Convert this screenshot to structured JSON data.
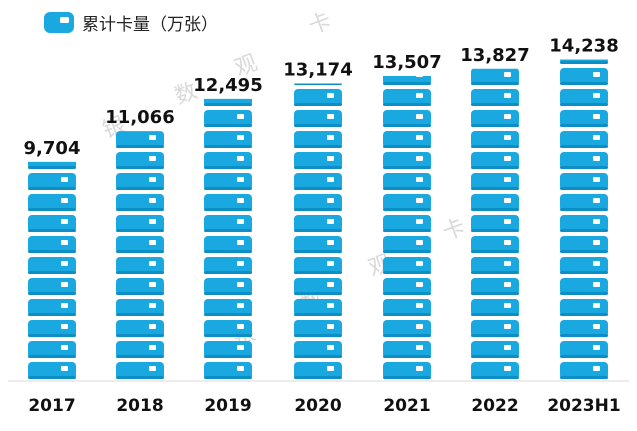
{
  "legend": {
    "label": "累计卡量（万张）",
    "icon": "bank-card-icon"
  },
  "watermark": [
    "银",
    "数",
    "观",
    "卡"
  ],
  "colors": {
    "card": "#19a8e0",
    "card_edge": "#0b8fc4",
    "chip": "#ffffff",
    "axis": "#d9d9d9",
    "text": "#111111"
  },
  "chart_data": {
    "type": "bar",
    "categories": [
      "2017",
      "2018",
      "2019",
      "2020",
      "2021",
      "2022",
      "2023H1"
    ],
    "values": [
      9704,
      11066,
      12495,
      13174,
      13507,
      13827,
      14238
    ],
    "value_labels": [
      "9,704",
      "11,066",
      "12,495",
      "13,174",
      "13,507",
      "13,827",
      "14,238"
    ],
    "ylim": [
      0,
      15500
    ],
    "grid": false,
    "legend_position": "top-left"
  }
}
